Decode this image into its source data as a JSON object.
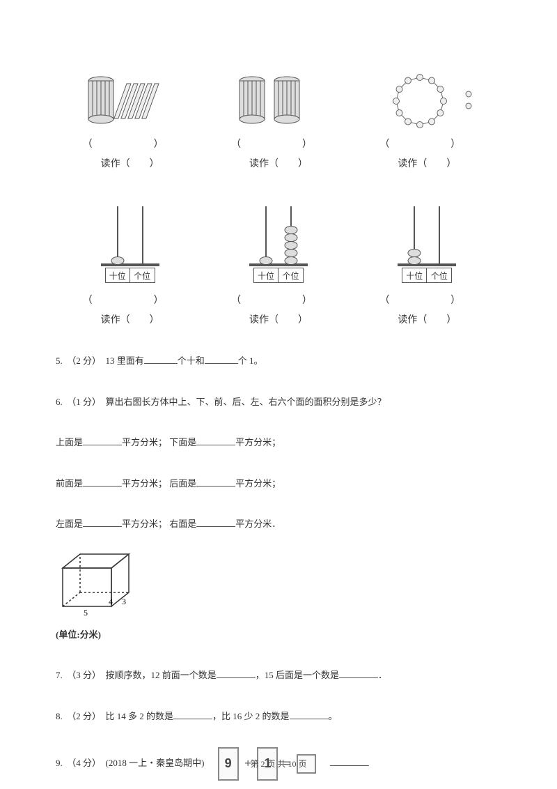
{
  "colors": {
    "text": "#333333",
    "line": "#555555",
    "bead": "#cccccc",
    "bead_stroke": "#666666",
    "stick_fill": "#dddddd",
    "stick_stroke": "#555555",
    "bg": "#ffffff"
  },
  "top_items": [
    {
      "type": "sticks_bundle_loose",
      "bracket": "（　　）",
      "read_prefix": "读作（",
      "read_suffix": "）"
    },
    {
      "type": "sticks_two_bundles",
      "bracket": "（　　）",
      "read_prefix": "读作（",
      "read_suffix": "）"
    },
    {
      "type": "bead_ring",
      "beads_ring": 12,
      "beads_extra": 2,
      "bracket": "（　　）",
      "read_prefix": "读作（",
      "read_suffix": "）"
    }
  ],
  "abacus_items": [
    {
      "tens": 1,
      "ones": 0,
      "tens_label": "十位",
      "ones_label": "个位",
      "bracket": "（　　）",
      "read_prefix": "读作（",
      "read_suffix": "）"
    },
    {
      "tens": 1,
      "ones": 5,
      "tens_label": "十位",
      "ones_label": "个位",
      "bracket": "（　　）",
      "read_prefix": "读作（",
      "read_suffix": "）"
    },
    {
      "tens": 2,
      "ones": 0,
      "tens_label": "十位",
      "ones_label": "个位",
      "bracket": "（　　）",
      "read_prefix": "读作（",
      "read_suffix": "）"
    }
  ],
  "q5": {
    "prefix": "5.　（2 分）　13 里面有",
    "mid": "个十和",
    "suffix": "个 1。"
  },
  "q6": {
    "line1": "6.　（1 分）　算出右图长方体中上、下、前、后、左、右六个面的面积分别是多少？",
    "rows": [
      {
        "a_label_pre": "上面是",
        "a_label_post": "平方分米；",
        "b_label_pre": "下面是",
        "b_label_post": "平方分米；"
      },
      {
        "a_label_pre": "前面是",
        "a_label_post": "平方分米；",
        "b_label_pre": "后面是",
        "b_label_post": "平方分米；"
      },
      {
        "a_label_pre": "左面是",
        "a_label_post": "平方分米；",
        "b_label_pre": "右面是",
        "b_label_post": "平方分米．"
      }
    ],
    "cuboid": {
      "w": 5,
      "d": 3,
      "h": 4,
      "unit_text": "(单位:分米)",
      "label_w": "5",
      "label_d": "3",
      "label_h": "4"
    }
  },
  "q7": {
    "pre": "7.　（3 分）　按顺序数，12 前面一个数是",
    "mid": "，15 后面是一个数是",
    "suf": "．"
  },
  "q8": {
    "pre": "8.　（2 分）　比 14 多 2 的数是",
    "mid": "，比 16 少 2 的数是",
    "suf": "。"
  },
  "q9": {
    "pre": "9.　（4 分）　(2018 一上・秦皇岛期中)　",
    "a": "9",
    "op": "+",
    "b": "1",
    "eq": "="
  },
  "footer": {
    "text": "第 2 页 共 10 页"
  }
}
